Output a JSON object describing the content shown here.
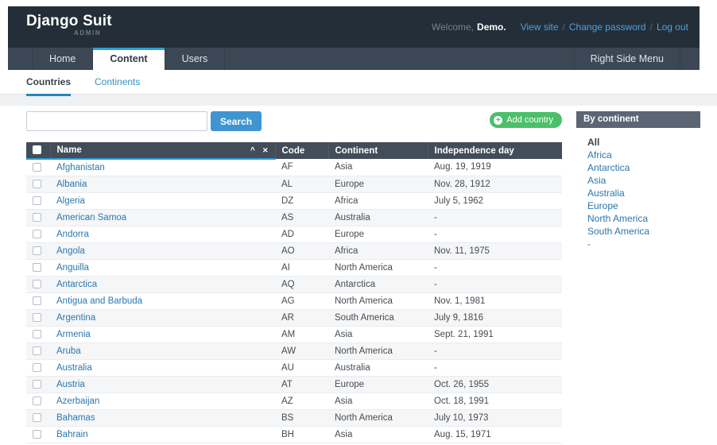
{
  "header": {
    "logo": "Django Suit",
    "logo_sub": "ADMIN",
    "welcome_prefix": "Welcome,",
    "welcome_user": "Demo.",
    "link_separator": "/",
    "links": [
      "View site",
      "Change password",
      "Log out"
    ]
  },
  "nav": {
    "tabs": [
      {
        "label": "Home",
        "active": false
      },
      {
        "label": "Content",
        "active": true
      },
      {
        "label": "Users",
        "active": false
      }
    ],
    "right_label": "Right Side Menu"
  },
  "subnav": {
    "tabs": [
      {
        "label": "Countries",
        "active": true
      },
      {
        "label": "Continents",
        "active": false
      }
    ]
  },
  "toolbar": {
    "search_value": "",
    "search_button_label": "Search",
    "add_button_label": "Add country",
    "add_button_icon": "+"
  },
  "filter": {
    "title": "By continent",
    "items": [
      {
        "label": "All",
        "active": true
      },
      {
        "label": "Africa",
        "active": false
      },
      {
        "label": "Antarctica",
        "active": false
      },
      {
        "label": "Asia",
        "active": false
      },
      {
        "label": "Australia",
        "active": false
      },
      {
        "label": "Europe",
        "active": false
      },
      {
        "label": "North America",
        "active": false
      },
      {
        "label": "South America",
        "active": false
      },
      {
        "label": "-",
        "active": false
      }
    ]
  },
  "table": {
    "columns": [
      "Name",
      "Code",
      "Continent",
      "Independence day"
    ],
    "sort_asc_icon": "^",
    "sort_remove_icon": "✕",
    "rows": [
      {
        "name": "Afghanistan",
        "code": "AF",
        "continent": "Asia",
        "independence_day": "Aug. 19, 1919"
      },
      {
        "name": "Albania",
        "code": "AL",
        "continent": "Europe",
        "independence_day": "Nov. 28, 1912"
      },
      {
        "name": "Algeria",
        "code": "DZ",
        "continent": "Africa",
        "independence_day": "July 5, 1962"
      },
      {
        "name": "American Samoa",
        "code": "AS",
        "continent": "Australia",
        "independence_day": "-"
      },
      {
        "name": "Andorra",
        "code": "AD",
        "continent": "Europe",
        "independence_day": "-"
      },
      {
        "name": "Angola",
        "code": "AO",
        "continent": "Africa",
        "independence_day": "Nov. 11, 1975"
      },
      {
        "name": "Anguilla",
        "code": "AI",
        "continent": "North America",
        "independence_day": "-"
      },
      {
        "name": "Antarctica",
        "code": "AQ",
        "continent": "Antarctica",
        "independence_day": "-"
      },
      {
        "name": "Antigua and Barbuda",
        "code": "AG",
        "continent": "North America",
        "independence_day": "Nov. 1, 1981"
      },
      {
        "name": "Argentina",
        "code": "AR",
        "continent": "South America",
        "independence_day": "July 9, 1816"
      },
      {
        "name": "Armenia",
        "code": "AM",
        "continent": "Asia",
        "independence_day": "Sept. 21, 1991"
      },
      {
        "name": "Aruba",
        "code": "AW",
        "continent": "North America",
        "independence_day": "-"
      },
      {
        "name": "Australia",
        "code": "AU",
        "continent": "Australia",
        "independence_day": "-"
      },
      {
        "name": "Austria",
        "code": "AT",
        "continent": "Europe",
        "independence_day": "Oct. 26, 1955"
      },
      {
        "name": "Azerbaijan",
        "code": "AZ",
        "continent": "Asia",
        "independence_day": "Oct. 18, 1991"
      },
      {
        "name": "Bahamas",
        "code": "BS",
        "continent": "North America",
        "independence_day": "July 10, 1973"
      },
      {
        "name": "Bahrain",
        "code": "BH",
        "continent": "Asia",
        "independence_day": "Aug. 15, 1971"
      }
    ]
  },
  "colors": {
    "accent_blue": "#2b9cd8",
    "button_blue": "#3e95d1",
    "button_green": "#4bc06a",
    "link_blue": "#2a77ad",
    "header_bg": "#242e38",
    "navbar_bg": "#3b4754",
    "table_header_bg": "#424d59",
    "filter_header_bg": "#5b6573"
  }
}
